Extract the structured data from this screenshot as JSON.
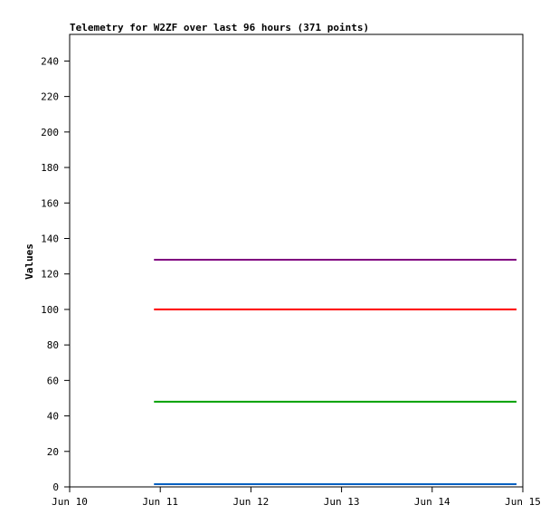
{
  "chart_data": {
    "type": "line",
    "title": "Telemetry for W2ZF over last 96 hours (371 points)",
    "ylabel": "Values",
    "xlabel": "",
    "ylim": [
      0,
      255
    ],
    "yticks": [
      0,
      20,
      40,
      60,
      80,
      100,
      120,
      140,
      160,
      180,
      200,
      220,
      240
    ],
    "xlim": [
      "Jun 10 00:00",
      "Jun 15 00:00"
    ],
    "xticks": [
      "Jun 10",
      "Jun 11",
      "Jun 12",
      "Jun 13",
      "Jun 14",
      "Jun 15"
    ],
    "grid": false,
    "series": [
      {
        "color": "#800080",
        "x": [
          "Jun 10 22:20",
          "Jun 14 22:20"
        ],
        "values": [
          128,
          128
        ]
      },
      {
        "color": "#ff0000",
        "x": [
          "Jun 10 22:20",
          "Jun 14 22:20"
        ],
        "values": [
          100,
          100
        ]
      },
      {
        "color": "#00a000",
        "x": [
          "Jun 10 22:20",
          "Jun 14 22:20"
        ],
        "values": [
          48,
          48
        ]
      },
      {
        "color": "#0060c0",
        "x": [
          "Jun 10 22:20",
          "Jun 14 22:20"
        ],
        "values": [
          1.5,
          1.5
        ]
      }
    ]
  }
}
